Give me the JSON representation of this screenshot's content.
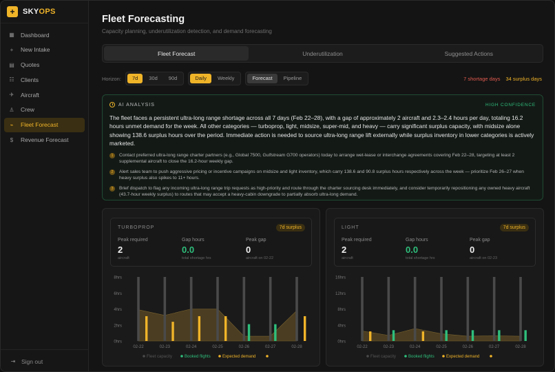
{
  "brand": {
    "logo": "+",
    "name_a": "SKY",
    "name_b": "OPS"
  },
  "nav": [
    {
      "icon": "▦",
      "icon_name": "dashboard-icon",
      "label": "Dashboard",
      "active": false
    },
    {
      "icon": "+",
      "icon_name": "plus-icon",
      "label": "New Intake",
      "active": false
    },
    {
      "icon": "▤",
      "icon_name": "document-icon",
      "label": "Quotes",
      "active": false
    },
    {
      "icon": "☷",
      "icon_name": "users-icon",
      "label": "Clients",
      "active": false
    },
    {
      "icon": "✈",
      "icon_name": "plane-icon",
      "label": "Aircraft",
      "active": false
    },
    {
      "icon": "♙",
      "icon_name": "crew-icon",
      "label": "Crew",
      "active": false
    },
    {
      "icon": "⌁",
      "icon_name": "chart-icon",
      "label": "Fleet Forecast",
      "active": true
    },
    {
      "icon": "$",
      "icon_name": "dollar-icon",
      "label": "Revenue Forecast",
      "active": false
    }
  ],
  "signout": {
    "icon": "⇥",
    "label": "Sign out"
  },
  "page": {
    "title": "Fleet Forecasting",
    "subtitle": "Capacity planning, underutilization detection, and demand forecasting"
  },
  "tabs": [
    {
      "label": "Fleet Forecast",
      "active": true
    },
    {
      "label": "Underutilization",
      "active": false
    },
    {
      "label": "Suggested Actions",
      "active": false
    }
  ],
  "controls": {
    "horizon_label": "Horizon:",
    "horizon": [
      "7d",
      "30d",
      "90d"
    ],
    "granularity": [
      "Daily",
      "Weekly"
    ],
    "mode": [
      "Forecast",
      "Pipeline"
    ],
    "shortage": "7 shortage days",
    "surplus": "34 surplus days"
  },
  "ai": {
    "label": "AI ANALYSIS",
    "confidence": "HIGH CONFIDENCE",
    "summary": "The fleet faces a persistent ultra-long range shortage across all 7 days (Feb 22–28), with a gap of approximately 2 aircraft and 2.3–2.4 hours per day, totaling 16.2 hours unmet demand for the week. All other categories — turboprop, light, midsize, super-mid, and heavy — carry significant surplus capacity, with midsize alone showing 138.6 surplus hours over the period. Immediate action is needed to source ultra-long range lift externally while surplus inventory in lower categories is actively marketed.",
    "items": [
      {
        "num": "1",
        "text": "Contact preferred ultra-long range charter partners (e.g., Global 7500, Gulfstream G700 operators) today to arrange wet-lease or interchange agreements covering Feb 22–28, targeting at least 2 supplemental aircraft to close the 16.2-hour weekly gap."
      },
      {
        "num": "2",
        "text": "Alert sales team to push aggressive pricing or incentive campaigns on midsize and light inventory, which carry 138.6 and 90.8 surplus hours respectively across the week — prioritize Feb 26–27 when heavy surplus also spikes to 11+ hours."
      },
      {
        "num": "3",
        "text": "Brief dispatch to flag any incoming ultra-long range trip requests as high-priority and route through the charter sourcing desk immediately, and consider temporarily repositioning any owned heavy aircraft (43.7-hour weekly surplus) to routes that may accept a heavy-cabin downgrade to partially absorb ultra-long demand."
      }
    ]
  },
  "cards": [
    {
      "category": "TURBOPROP",
      "badge": "7d surplus",
      "peak_required": {
        "label": "Peak required",
        "value": "2",
        "sub": "aircraft"
      },
      "gap_hours": {
        "label": "Gap hours",
        "value": "0.0",
        "sub": "total shortage hrs"
      },
      "peak_gap": {
        "label": "Peak gap",
        "value": "0",
        "sub": "aircraft on 02-22"
      }
    },
    {
      "category": "LIGHT",
      "badge": "7d surplus",
      "peak_required": {
        "label": "Peak required",
        "value": "2",
        "sub": "aircraft"
      },
      "gap_hours": {
        "label": "Gap hours",
        "value": "0.0",
        "sub": "total shortage hrs"
      },
      "peak_gap": {
        "label": "Peak gap",
        "value": "0",
        "sub": "aircraft on 02-23"
      }
    }
  ],
  "colors": {
    "capacity": "#4a4a4a",
    "booked": "#2fbf7c",
    "expected": "#f0b429",
    "area": "#5c4a24"
  },
  "chart_data": [
    {
      "type": "bar",
      "categories": [
        "02-22",
        "02-23",
        "02-24",
        "02-25",
        "02-26",
        "02-27",
        "02-28"
      ],
      "y_ticks": [
        "8hrs",
        "6hrs",
        "4hrs",
        "2hrs",
        "0hrs"
      ],
      "ylim": [
        0,
        8
      ],
      "series": [
        {
          "name": "Fleet capacity",
          "values": [
            8,
            8,
            8,
            8,
            8,
            8,
            8
          ]
        },
        {
          "name": "Booked flights",
          "values": [
            0,
            0,
            0,
            0,
            2.1,
            2.1,
            0
          ]
        },
        {
          "name": "Expected demand",
          "values": [
            3.1,
            2.4,
            3.1,
            3.1,
            0,
            0,
            3.1
          ]
        }
      ],
      "area_values": [
        3.9,
        3.2,
        4.0,
        4.0,
        0.6,
        0.6,
        3.8
      ],
      "legend": [
        "Fleet capacity",
        "Booked flights",
        "Expected demand"
      ]
    },
    {
      "type": "bar",
      "categories": [
        "02-22",
        "02-23",
        "02-24",
        "02-25",
        "02-26",
        "02-27",
        "02-28"
      ],
      "y_ticks": [
        "16hrs",
        "12hrs",
        "8hrs",
        "4hrs",
        "0hrs"
      ],
      "ylim": [
        0,
        16
      ],
      "series": [
        {
          "name": "Fleet capacity",
          "values": [
            16,
            16,
            16,
            16,
            16,
            16,
            16
          ]
        },
        {
          "name": "Booked flights",
          "values": [
            0,
            2.7,
            0,
            2.7,
            2.7,
            2.7,
            2.7
          ]
        },
        {
          "name": "Expected demand",
          "values": [
            2.4,
            0,
            2.4,
            0,
            0,
            0,
            0
          ]
        }
      ],
      "area_values": [
        2.5,
        1.4,
        3.1,
        1.8,
        1.2,
        1.3,
        1.2
      ],
      "legend": [
        "Fleet capacity",
        "Booked flights",
        "Expected demand"
      ]
    }
  ]
}
